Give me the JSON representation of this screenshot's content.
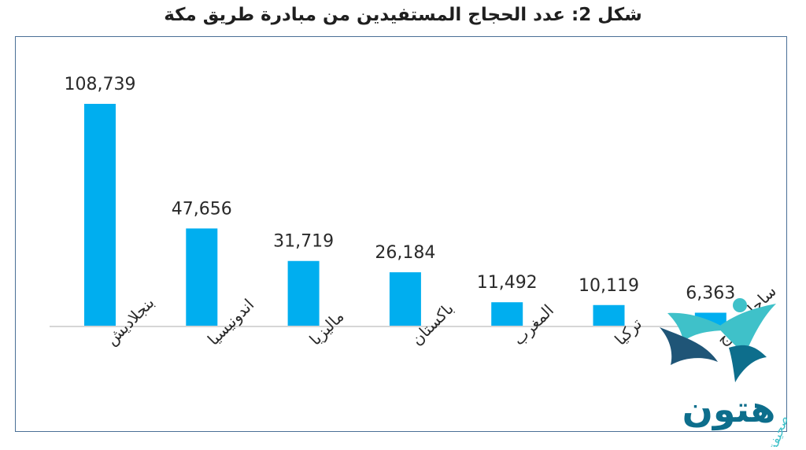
{
  "chart_data": {
    "type": "bar",
    "title": "شكل 2: عدد الحجاج المستفيدين من مبادرة طريق مكة",
    "categories": [
      "بنجلاديش",
      "اندونيسيا",
      "ماليزيا",
      "باكستان",
      "المغرب",
      "تركيا",
      "ساحل العاج"
    ],
    "values": [
      108739,
      47656,
      31719,
      26184,
      11492,
      10119,
      6363
    ],
    "value_labels": [
      "108,739",
      "47,656",
      "31,719",
      "26,184",
      "11,492",
      "10,119",
      "6,363"
    ],
    "ylim": [
      0,
      108739
    ],
    "grid": false,
    "legend": "none",
    "bar_color": "#00aeef"
  },
  "logo": {
    "text": "هتون",
    "subtext": "صحيفة",
    "colors": [
      "#0d6e8c",
      "#1f5577",
      "#3fc1c9"
    ]
  }
}
